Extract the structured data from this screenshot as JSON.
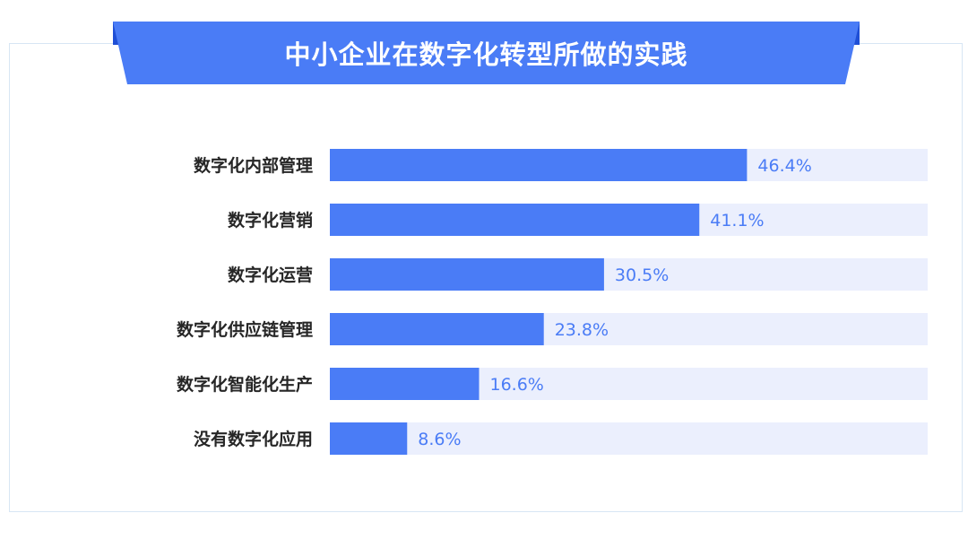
{
  "colors": {
    "banner": "#4a7cf6",
    "banner_dark": "#1f4fd6",
    "bar": "#4a7cf6",
    "track": "#ebeffd",
    "value_text": "#4a7cf6",
    "label_text": "#262626"
  },
  "chart_data": {
    "type": "bar",
    "orientation": "horizontal",
    "title": "中小企业在数字化转型所做的实践",
    "categories": [
      "数字化内部管理",
      "数字化营销",
      "数字化运营",
      "数字化供应链管理",
      "数字化智能化生产",
      "没有数字化应用"
    ],
    "values": [
      46.4,
      41.1,
      30.5,
      23.8,
      16.6,
      8.6
    ],
    "value_labels": [
      "46.4%",
      "41.1%",
      "30.5%",
      "23.8%",
      "16.6%",
      "8.6%"
    ],
    "unit": "%",
    "xlim": [
      0,
      100
    ],
    "grid": false,
    "legend": "none"
  }
}
